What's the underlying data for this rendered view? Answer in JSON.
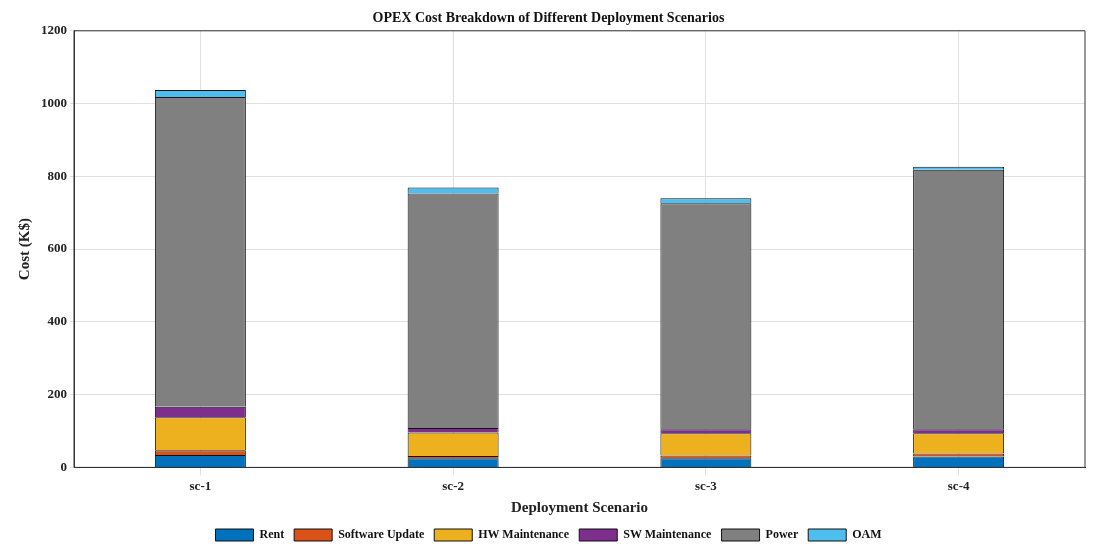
{
  "chart_data": {
    "type": "bar",
    "title": "OPEX Cost Breakdown of Different Deployment Scenarios",
    "xlabel": "Deployment Scenario",
    "ylabel": "Cost (K$)",
    "categories": [
      "sc-1",
      "sc-2",
      "sc-3",
      "sc-4"
    ],
    "series": [
      {
        "name": "Rent",
        "color": "#0072bd",
        "values": [
          34,
          25,
          25,
          30
        ]
      },
      {
        "name": "Software Update",
        "color": "#d95319",
        "values": [
          13,
          6,
          8,
          8
        ]
      },
      {
        "name": "HW Maintenance",
        "color": "#edb120",
        "values": [
          91,
          65,
          61,
          56
        ]
      },
      {
        "name": "SW Maintenance",
        "color": "#7e2f8e",
        "values": [
          29,
          12,
          11,
          11
        ]
      },
      {
        "name": "Power",
        "color": "#808080",
        "values": [
          851,
          645,
          621,
          713
        ]
      },
      {
        "name": "OAM",
        "color": "#4dbeee",
        "values": [
          19,
          16,
          14,
          8
        ]
      }
    ],
    "stacked": true,
    "ylim": [
      0,
      1200
    ],
    "yticks": [
      0,
      200,
      400,
      600,
      800,
      1000,
      1200
    ],
    "grid": true,
    "legend": "bottom"
  }
}
